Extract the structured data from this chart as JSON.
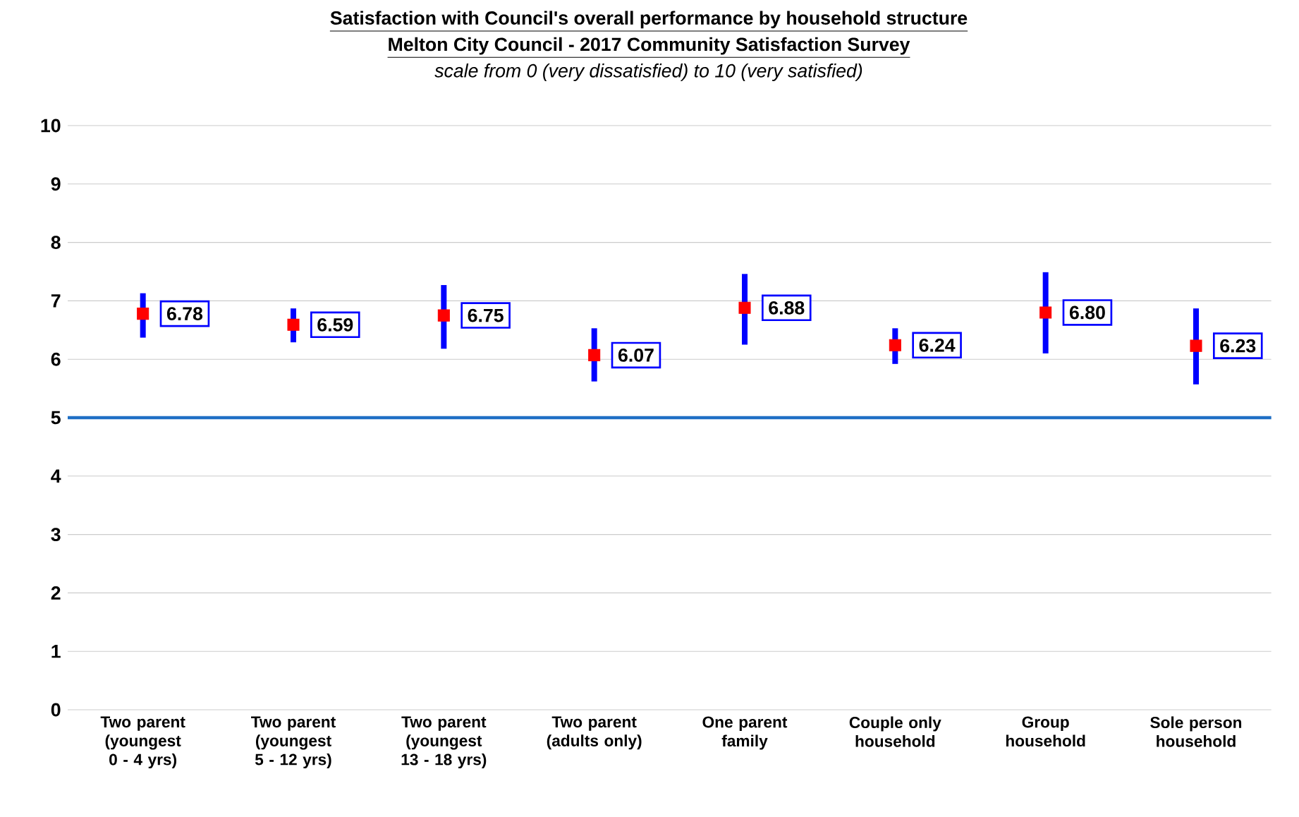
{
  "chart_data": {
    "type": "scatter",
    "title": "Satisfaction with Council's overall performance by household structure",
    "subtitle": "Melton City Council - 2017 Community Satisfaction Survey",
    "annotations": [
      "scale from 0 (very dissatisfied) to 10 (very satisfied)"
    ],
    "categories": [
      "Two parent (youngest 0 - 4 yrs)",
      "Two parent (youngest 5 - 12 yrs)",
      "Two parent (youngest 13 - 18 yrs)",
      "Two parent (adults only)",
      "One parent family",
      "Couple only household",
      "Group household",
      "Sole person household"
    ],
    "values": [
      6.78,
      6.59,
      6.75,
      6.07,
      6.88,
      6.24,
      6.8,
      6.23
    ],
    "value_labels": [
      "6.78",
      "6.59",
      "6.75",
      "6.07",
      "6.88",
      "6.24",
      "6.80",
      "6.23"
    ],
    "errors": [
      [
        6.37,
        7.13
      ],
      [
        6.29,
        6.87
      ],
      [
        6.18,
        7.27
      ],
      [
        5.62,
        6.53
      ],
      [
        6.25,
        7.46
      ],
      [
        5.92,
        6.53
      ],
      [
        6.1,
        7.49
      ],
      [
        5.57,
        6.87
      ]
    ],
    "color": "#ff0000",
    "marker": "square",
    "ylim": [
      0,
      10
    ],
    "yticks": [
      0,
      1,
      2,
      3,
      4,
      5,
      6,
      7,
      8,
      9,
      10
    ],
    "grid": "y",
    "ref_lines": [
      {
        "axis": "y",
        "value": 5,
        "color": "#1f6fc5",
        "line_style": "solid"
      }
    ]
  }
}
